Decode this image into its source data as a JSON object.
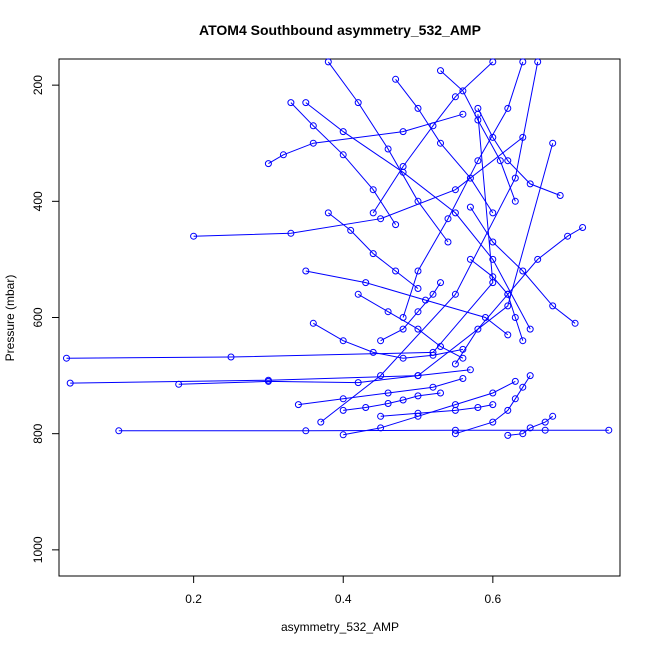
{
  "chart_data": {
    "type": "line",
    "title": "ATOM4 Southbound asymmetry_532_AMP",
    "xlabel": "asymmetry_532_AMP",
    "ylabel": "Pressure (mbar)",
    "xlim": [
      0.02,
      0.77
    ],
    "ylim": [
      1045,
      155
    ],
    "y_reversed": true,
    "x_ticks": [
      0.2,
      0.4,
      0.6
    ],
    "x_tick_labels": [
      "0.2",
      "0.4",
      "0.6"
    ],
    "y_ticks": [
      200,
      400,
      600,
      800,
      1000
    ],
    "y_tick_labels": [
      "200",
      "400",
      "600",
      "800",
      "1000"
    ],
    "grid": false,
    "legend": "none",
    "series_color": "#0000ff",
    "markers": "open-circle",
    "series": [
      {
        "x": [
          0.37,
          0.45,
          0.55,
          0.63,
          0.66
        ],
        "y": [
          780,
          700,
          560,
          360,
          160
        ]
      },
      {
        "x": [
          0.03,
          0.25,
          0.52,
          0.6,
          0.58
        ],
        "y": [
          670,
          668,
          660,
          540,
          250
        ]
      },
      {
        "x": [
          0.035,
          0.3,
          0.5,
          0.62,
          0.68
        ],
        "y": [
          713,
          708,
          700,
          580,
          300
        ]
      },
      {
        "x": [
          0.1,
          0.35,
          0.55,
          0.67,
          0.755
        ],
        "y": [
          795,
          795,
          794,
          794,
          794
        ]
      },
      {
        "x": [
          0.2,
          0.33,
          0.45,
          0.55,
          0.64
        ],
        "y": [
          460,
          455,
          430,
          380,
          290
        ]
      },
      {
        "x": [
          0.3,
          0.32,
          0.36,
          0.48,
          0.56
        ],
        "y": [
          335,
          320,
          300,
          280,
          250
        ]
      },
      {
        "x": [
          0.18,
          0.3,
          0.42,
          0.5,
          0.57
        ],
        "y": [
          715,
          710,
          712,
          700,
          690
        ]
      },
      {
        "x": [
          0.35,
          0.4,
          0.48,
          0.55,
          0.6,
          0.65
        ],
        "y": [
          230,
          280,
          350,
          420,
          500,
          620
        ]
      },
      {
        "x": [
          0.72,
          0.7,
          0.66,
          0.62,
          0.58,
          0.55
        ],
        "y": [
          445,
          460,
          500,
          560,
          620,
          680
        ]
      },
      {
        "x": [
          0.71,
          0.68,
          0.64,
          0.6,
          0.57
        ],
        "y": [
          610,
          580,
          520,
          470,
          410
        ]
      },
      {
        "x": [
          0.69,
          0.65,
          0.62,
          0.6,
          0.58
        ],
        "y": [
          390,
          370,
          330,
          290,
          240
        ]
      },
      {
        "x": [
          0.38,
          0.42,
          0.46,
          0.5,
          0.54
        ],
        "y": [
          160,
          230,
          310,
          400,
          470
        ]
      },
      {
        "x": [
          0.6,
          0.55,
          0.52,
          0.48,
          0.44
        ],
        "y": [
          160,
          220,
          270,
          340,
          420
        ]
      },
      {
        "x": [
          0.55,
          0.6,
          0.62,
          0.63,
          0.64,
          0.65
        ],
        "y": [
          800,
          780,
          760,
          740,
          720,
          700
        ]
      },
      {
        "x": [
          0.4,
          0.45,
          0.5,
          0.55,
          0.6,
          0.63
        ],
        "y": [
          802,
          790,
          770,
          750,
          730,
          710
        ]
      },
      {
        "x": [
          0.34,
          0.4,
          0.46,
          0.52,
          0.56
        ],
        "y": [
          750,
          740,
          730,
          720,
          705
        ]
      },
      {
        "x": [
          0.35,
          0.43,
          0.51,
          0.59,
          0.62
        ],
        "y": [
          520,
          540,
          570,
          600,
          630
        ]
      },
      {
        "x": [
          0.45,
          0.48,
          0.5,
          0.52,
          0.53
        ],
        "y": [
          640,
          620,
          590,
          560,
          540
        ]
      },
      {
        "x": [
          0.36,
          0.4,
          0.44,
          0.48,
          0.52,
          0.56
        ],
        "y": [
          610,
          640,
          660,
          670,
          665,
          655
        ]
      },
      {
        "x": [
          0.33,
          0.36,
          0.4,
          0.44,
          0.47
        ],
        "y": [
          230,
          270,
          320,
          380,
          440
        ]
      },
      {
        "x": [
          0.47,
          0.5,
          0.53,
          0.57,
          0.6
        ],
        "y": [
          190,
          240,
          300,
          360,
          420
        ]
      },
      {
        "x": [
          0.53,
          0.56,
          0.58,
          0.61,
          0.63
        ],
        "y": [
          175,
          210,
          260,
          330,
          400
        ]
      },
      {
        "x": [
          0.64,
          0.62,
          0.58,
          0.54,
          0.5,
          0.48
        ],
        "y": [
          160,
          240,
          330,
          430,
          520,
          600
        ]
      },
      {
        "x": [
          0.57,
          0.6,
          0.62,
          0.63,
          0.64
        ],
        "y": [
          500,
          530,
          560,
          600,
          640
        ]
      },
      {
        "x": [
          0.42,
          0.46,
          0.5,
          0.53,
          0.56
        ],
        "y": [
          560,
          590,
          620,
          650,
          670
        ]
      },
      {
        "x": [
          0.38,
          0.41,
          0.44,
          0.47,
          0.5
        ],
        "y": [
          420,
          450,
          490,
          520,
          550
        ]
      },
      {
        "x": [
          0.62,
          0.64,
          0.65,
          0.67,
          0.68
        ],
        "y": [
          803,
          800,
          790,
          780,
          770
        ]
      },
      {
        "x": [
          0.4,
          0.43,
          0.46,
          0.48,
          0.5,
          0.53
        ],
        "y": [
          760,
          755,
          748,
          742,
          735,
          730
        ]
      },
      {
        "x": [
          0.45,
          0.5,
          0.55,
          0.58,
          0.6
        ],
        "y": [
          770,
          765,
          760,
          755,
          750
        ]
      }
    ]
  }
}
